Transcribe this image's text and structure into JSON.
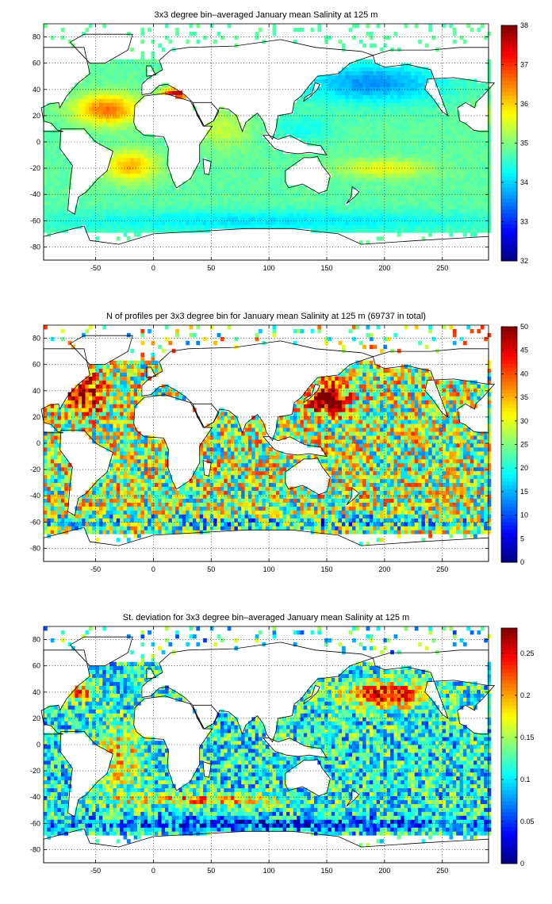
{
  "chart_data": [
    {
      "type": "heatmap",
      "title": "3x3 degree bin–averaged January mean Salinity at 125 m",
      "xticks": [
        -50,
        0,
        50,
        100,
        150,
        200,
        250
      ],
      "yticks": [
        80,
        60,
        40,
        20,
        0,
        -20,
        -40,
        -60,
        -80
      ],
      "xlim": [
        -95,
        290
      ],
      "ylim": [
        -90,
        90
      ],
      "colorbar": {
        "min": 32,
        "max": 38,
        "ticks": [
          32,
          33,
          34,
          35,
          36,
          37,
          38
        ]
      },
      "field": "salinity",
      "grid": true
    },
    {
      "type": "heatmap",
      "title": "N of profiles per 3x3 degree bin for January mean Salinity at 125 m (69737 in total)",
      "xticks": [
        -50,
        0,
        50,
        100,
        150,
        200,
        250
      ],
      "yticks": [
        80,
        60,
        40,
        20,
        0,
        -20,
        -40,
        -60,
        -80
      ],
      "xlim": [
        -95,
        290
      ],
      "ylim": [
        -90,
        90
      ],
      "colorbar": {
        "min": 0,
        "max": 50,
        "ticks": [
          0,
          5,
          10,
          15,
          20,
          25,
          30,
          35,
          40,
          45,
          50
        ]
      },
      "field": "count",
      "grid": true
    },
    {
      "type": "heatmap",
      "title": "St. deviation for 3x3 degree bin–averaged January mean Salinity at 125 m",
      "xticks": [
        -50,
        0,
        50,
        100,
        150,
        200,
        250
      ],
      "yticks": [
        80,
        60,
        40,
        20,
        0,
        -20,
        -40,
        -60,
        -80
      ],
      "xlim": [
        -95,
        290
      ],
      "ylim": [
        -90,
        90
      ],
      "colorbar": {
        "min": 0,
        "max": 0.28,
        "ticks": [
          0,
          0.05,
          0.1,
          0.15,
          0.2,
          0.25
        ],
        "tick_labels": [
          "0",
          "0.05",
          "0.1",
          "0.15",
          "0.2",
          "0.25"
        ]
      },
      "field": "stdev",
      "grid": true
    }
  ]
}
